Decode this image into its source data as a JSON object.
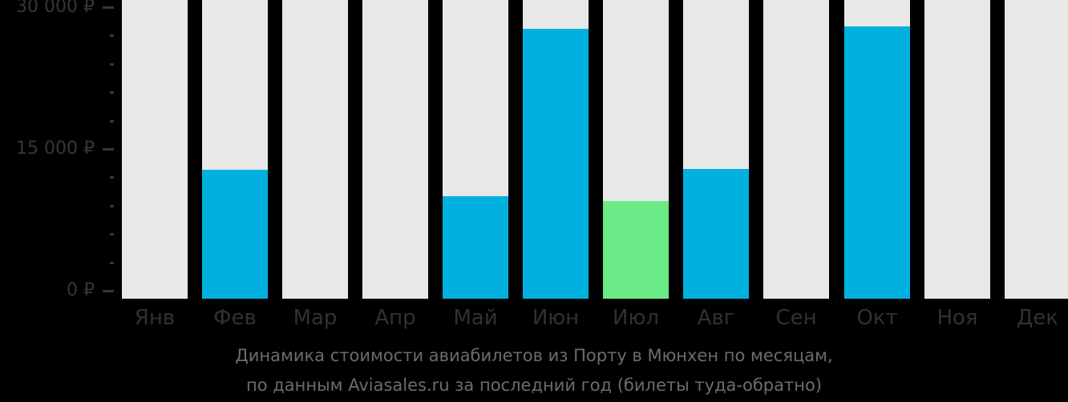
{
  "chart_data": {
    "type": "bar",
    "title": "Динамика стоимости авиабилетов из Порту в Мюнхен по месяцам,",
    "subtitle": "по данным Aviasales.ru за последний год (билеты туда-обратно)",
    "categories": [
      "Янв",
      "Фев",
      "Мар",
      "Апр",
      "Май",
      "Июн",
      "Июл",
      "Авг",
      "Сен",
      "Окт",
      "Ноя",
      "Дек"
    ],
    "values": [
      null,
      12800,
      null,
      null,
      10000,
      27700,
      9500,
      12900,
      null,
      28000,
      null,
      null
    ],
    "highlight_category": "Июл",
    "currency": "₽",
    "ylim": [
      0,
      30000
    ],
    "yticks_major": [
      {
        "value": 0,
        "label": "0 ₽"
      },
      {
        "value": 15000,
        "label": "15 000 ₽"
      },
      {
        "value": 30000,
        "label": "30 000 ₽"
      }
    ],
    "ytick_minor_step": 3000,
    "grid": false,
    "legend": "none",
    "colors": {
      "bar_default": "#00b1e0",
      "bar_highlight": "#6bea88",
      "column_background": "#e8e8e9",
      "axis_text": "#34373a",
      "month_text": "#2f3133",
      "caption_text": "#6c6c6c",
      "page_background": "#000000"
    }
  }
}
